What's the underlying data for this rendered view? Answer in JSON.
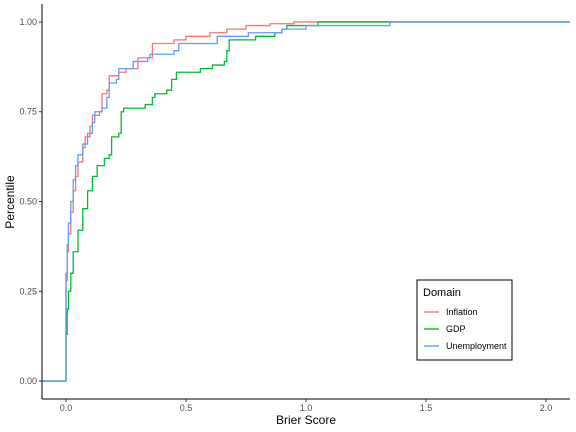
{
  "chart_data": {
    "type": "line",
    "subtype": "empirical-cdf-step",
    "title": "",
    "xlabel": "Brier Score",
    "ylabel": "Percentile",
    "xlim": [
      -0.1,
      2.1
    ],
    "ylim": [
      -0.05,
      1.05
    ],
    "x_ticks": [
      0.0,
      0.5,
      1.0,
      1.5,
      2.0
    ],
    "x_tick_labels": [
      "0.0",
      "0.5",
      "1.0",
      "1.5",
      "2.0"
    ],
    "y_ticks": [
      0.0,
      0.25,
      0.5,
      0.75,
      1.0
    ],
    "y_tick_labels": [
      "0.00",
      "0.25",
      "0.50",
      "0.75",
      "1.00"
    ],
    "grid": false,
    "legend": {
      "title": "Domain",
      "position": "bottom-right",
      "entries": [
        "Inflation",
        "GDP",
        "Unemployment"
      ]
    },
    "series": [
      {
        "name": "Inflation",
        "color": "#F8766D",
        "points": [
          [
            -0.1,
            0
          ],
          [
            0,
            0
          ],
          [
            0,
            0.28
          ],
          [
            0.005,
            0.36
          ],
          [
            0.01,
            0.41
          ],
          [
            0.02,
            0.47
          ],
          [
            0.03,
            0.53
          ],
          [
            0.04,
            0.57
          ],
          [
            0.05,
            0.61
          ],
          [
            0.07,
            0.65
          ],
          [
            0.08,
            0.68
          ],
          [
            0.1,
            0.71
          ],
          [
            0.11,
            0.74
          ],
          [
            0.14,
            0.75
          ],
          [
            0.15,
            0.8
          ],
          [
            0.17,
            0.81
          ],
          [
            0.18,
            0.85
          ],
          [
            0.22,
            0.86
          ],
          [
            0.25,
            0.87
          ],
          [
            0.3,
            0.9
          ],
          [
            0.36,
            0.9
          ],
          [
            0.36,
            0.94
          ],
          [
            0.45,
            0.95
          ],
          [
            0.5,
            0.96
          ],
          [
            0.6,
            0.97
          ],
          [
            0.66,
            0.97
          ],
          [
            0.67,
            0.98
          ],
          [
            0.74,
            0.98
          ],
          [
            0.75,
            0.99
          ],
          [
            0.8,
            0.99
          ],
          [
            0.85,
            0.995
          ],
          [
            0.95,
            1.0
          ],
          [
            2.1,
            1.0
          ]
        ]
      },
      {
        "name": "GDP",
        "color": "#00BA38",
        "points": [
          [
            -0.1,
            0
          ],
          [
            0,
            0
          ],
          [
            0,
            0.13
          ],
          [
            0.005,
            0.2
          ],
          [
            0.01,
            0.25
          ],
          [
            0.02,
            0.3
          ],
          [
            0.03,
            0.36
          ],
          [
            0.05,
            0.42
          ],
          [
            0.07,
            0.48
          ],
          [
            0.09,
            0.53
          ],
          [
            0.11,
            0.57
          ],
          [
            0.13,
            0.6
          ],
          [
            0.16,
            0.62
          ],
          [
            0.18,
            0.63
          ],
          [
            0.19,
            0.68
          ],
          [
            0.22,
            0.69
          ],
          [
            0.23,
            0.75
          ],
          [
            0.24,
            0.76
          ],
          [
            0.33,
            0.77
          ],
          [
            0.36,
            0.79
          ],
          [
            0.37,
            0.8
          ],
          [
            0.42,
            0.81
          ],
          [
            0.44,
            0.84
          ],
          [
            0.46,
            0.86
          ],
          [
            0.56,
            0.87
          ],
          [
            0.6,
            0.87
          ],
          [
            0.61,
            0.88
          ],
          [
            0.66,
            0.89
          ],
          [
            0.67,
            0.92
          ],
          [
            0.68,
            0.95
          ],
          [
            0.79,
            0.96
          ],
          [
            0.87,
            0.97
          ],
          [
            0.9,
            0.98
          ],
          [
            0.92,
            0.99
          ],
          [
            1.05,
            1.0
          ],
          [
            2.1,
            1.0
          ]
        ]
      },
      {
        "name": "Unemployment",
        "color": "#619CFF",
        "points": [
          [
            -0.1,
            0
          ],
          [
            0,
            0
          ],
          [
            0,
            0.3
          ],
          [
            0.005,
            0.38
          ],
          [
            0.01,
            0.44
          ],
          [
            0.02,
            0.5
          ],
          [
            0.03,
            0.56
          ],
          [
            0.04,
            0.6
          ],
          [
            0.05,
            0.63
          ],
          [
            0.07,
            0.66
          ],
          [
            0.09,
            0.69
          ],
          [
            0.11,
            0.72
          ],
          [
            0.12,
            0.75
          ],
          [
            0.15,
            0.76
          ],
          [
            0.17,
            0.79
          ],
          [
            0.18,
            0.83
          ],
          [
            0.21,
            0.84
          ],
          [
            0.22,
            0.87
          ],
          [
            0.27,
            0.87
          ],
          [
            0.28,
            0.89
          ],
          [
            0.34,
            0.9
          ],
          [
            0.35,
            0.91
          ],
          [
            0.45,
            0.92
          ],
          [
            0.47,
            0.94
          ],
          [
            0.62,
            0.94
          ],
          [
            0.63,
            0.96
          ],
          [
            0.76,
            0.97
          ],
          [
            0.9,
            0.98
          ],
          [
            1.0,
            0.99
          ],
          [
            1.35,
            1.0
          ],
          [
            2.1,
            1.0
          ]
        ]
      }
    ]
  }
}
